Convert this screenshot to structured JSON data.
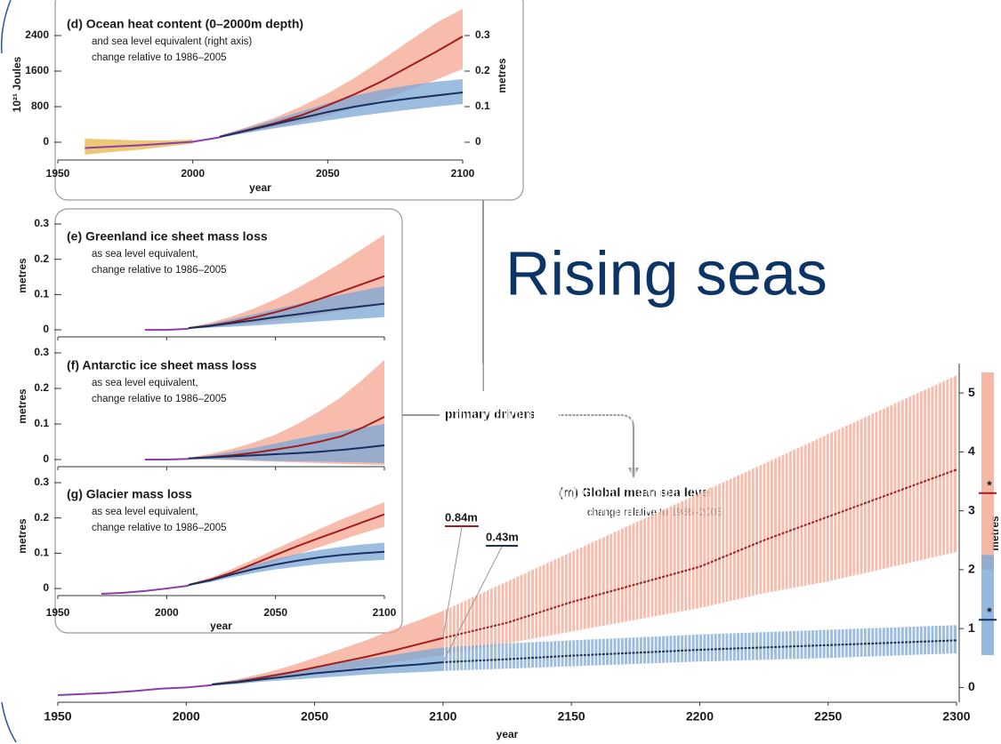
{
  "headline": "Rising seas",
  "connector_label": "primary drivers",
  "chart_data": [
    {
      "type": "line",
      "title": "(d) Ocean heat content (0–2000m depth)",
      "subtitle": [
        "and sea level equivalent (right axis)",
        "change relative to 1986–2005"
      ],
      "xlabel": "year",
      "ylabel": "10²¹ Joules",
      "y2label": "metres",
      "x": [
        1950,
        1960,
        1970,
        1980,
        1990,
        2000,
        2010,
        2020,
        2030,
        2040,
        2050,
        2060,
        2070,
        2080,
        2090,
        2100
      ],
      "xlim": [
        1950,
        2100
      ],
      "xticks": [
        1950,
        2000,
        2050,
        2100
      ],
      "show_xtick_labels": true,
      "ylim": [
        -400,
        3000
      ],
      "yticks": [
        0,
        800,
        1600,
        2400
      ],
      "y2lim": [
        -0.05,
        0.375
      ],
      "y2ticks": [
        0,
        0.1,
        0.2,
        0.3
      ],
      "series": [
        {
          "color": "#8b3ea8",
          "band_color": "#e6b447",
          "values": [
            null,
            -130,
            -100,
            -70,
            -30,
            10,
            110,
            null,
            null,
            null,
            null,
            null,
            null,
            null,
            null,
            null
          ],
          "lower": [
            null,
            -280,
            -220,
            -170,
            -100,
            -30,
            null,
            null,
            null,
            null,
            null,
            null,
            null,
            null,
            null,
            null
          ],
          "upper": [
            null,
            80,
            60,
            40,
            40,
            60,
            null,
            null,
            null,
            null,
            null,
            null,
            null,
            null,
            null,
            null
          ]
        },
        {
          "color": "#a31d1d",
          "band_color": "#f4a58f",
          "values": [
            null,
            null,
            null,
            null,
            null,
            null,
            120,
            270,
            420,
            600,
            830,
            1080,
            1370,
            1700,
            2030,
            2380
          ],
          "lower": [
            null,
            null,
            null,
            null,
            null,
            null,
            100,
            220,
            330,
            450,
            600,
            770,
            960,
            1170,
            1400,
            1650
          ],
          "upper": [
            null,
            null,
            null,
            null,
            null,
            null,
            150,
            340,
            540,
            800,
            1100,
            1450,
            1850,
            2270,
            2680,
            3000
          ]
        },
        {
          "color": "#1b2f5e",
          "band_color": "#7ba7d6",
          "values": [
            null,
            null,
            null,
            null,
            null,
            null,
            120,
            260,
            400,
            540,
            680,
            800,
            900,
            980,
            1050,
            1120
          ],
          "lower": [
            null,
            null,
            null,
            null,
            null,
            null,
            100,
            210,
            310,
            400,
            490,
            580,
            660,
            730,
            800,
            860
          ],
          "upper": [
            null,
            null,
            null,
            null,
            null,
            null,
            150,
            320,
            500,
            690,
            880,
            1050,
            1180,
            1280,
            1360,
            1420
          ]
        }
      ]
    },
    {
      "type": "line",
      "title": "(e) Greenland ice sheet mass loss",
      "subtitle": [
        "as sea level equivalent,",
        "change relative to 1986–2005"
      ],
      "ylabel": "metres",
      "x": [
        1950,
        1960,
        1970,
        1980,
        1990,
        2000,
        2010,
        2020,
        2030,
        2040,
        2050,
        2060,
        2070,
        2080,
        2090,
        2100
      ],
      "xlim": [
        1950,
        2100
      ],
      "xticks": [
        1950,
        2000,
        2050,
        2100
      ],
      "show_xtick_labels": false,
      "ylim": [
        -0.02,
        0.3
      ],
      "yticks": [
        0,
        0.1,
        0.2,
        0.3
      ],
      "series": [
        {
          "color": "#8b3ea8",
          "values": [
            null,
            null,
            null,
            null,
            0,
            0,
            0.003,
            null,
            null,
            null,
            null,
            null,
            null,
            null,
            null,
            null
          ]
        },
        {
          "color": "#a31d1d",
          "band_color": "#f4a58f",
          "values": [
            null,
            null,
            null,
            null,
            null,
            null,
            0.005,
            0.012,
            0.022,
            0.035,
            0.05,
            0.067,
            0.087,
            0.108,
            0.13,
            0.152
          ],
          "lower": [
            null,
            null,
            null,
            null,
            null,
            null,
            0.003,
            0.007,
            0.012,
            0.018,
            0.026,
            0.034,
            0.043,
            0.053,
            0.063,
            0.073
          ],
          "upper": [
            null,
            null,
            null,
            null,
            null,
            null,
            0.007,
            0.02,
            0.038,
            0.06,
            0.087,
            0.118,
            0.153,
            0.19,
            0.23,
            0.27
          ]
        },
        {
          "color": "#1b2f5e",
          "band_color": "#7ba7d6",
          "values": [
            null,
            null,
            null,
            null,
            null,
            null,
            0.005,
            0.011,
            0.019,
            0.027,
            0.036,
            0.044,
            0.052,
            0.06,
            0.067,
            0.074
          ],
          "lower": [
            null,
            null,
            null,
            null,
            null,
            null,
            0.003,
            0.006,
            0.009,
            0.012,
            0.016,
            0.02,
            0.024,
            0.028,
            0.032,
            0.036
          ],
          "upper": [
            null,
            null,
            null,
            null,
            null,
            null,
            0.007,
            0.017,
            0.03,
            0.044,
            0.059,
            0.073,
            0.087,
            0.1,
            0.112,
            0.124
          ]
        }
      ]
    },
    {
      "type": "line",
      "title": "(f) Antarctic ice sheet mass loss",
      "subtitle": [
        "as sea level equivalent,",
        "change relative to 1986–2005"
      ],
      "ylabel": "metres",
      "x": [
        1950,
        1960,
        1970,
        1980,
        1990,
        2000,
        2010,
        2020,
        2030,
        2040,
        2050,
        2060,
        2070,
        2080,
        2090,
        2100
      ],
      "xlim": [
        1950,
        2100
      ],
      "xticks": [
        1950,
        2000,
        2050,
        2100
      ],
      "show_xtick_labels": false,
      "ylim": [
        -0.02,
        0.3
      ],
      "yticks": [
        0,
        0.1,
        0.2,
        0.3
      ],
      "series": [
        {
          "color": "#8b3ea8",
          "values": [
            null,
            null,
            null,
            null,
            0,
            0,
            0.002,
            null,
            null,
            null,
            null,
            null,
            null,
            null,
            null,
            null
          ]
        },
        {
          "color": "#a31d1d",
          "band_color": "#f4a58f",
          "values": [
            null,
            null,
            null,
            null,
            null,
            null,
            0.003,
            0.007,
            0.012,
            0.019,
            0.028,
            0.038,
            0.05,
            0.065,
            0.09,
            0.12
          ],
          "lower": [
            null,
            null,
            null,
            null,
            null,
            null,
            0.001,
            0,
            -0.002,
            -0.004,
            -0.006,
            -0.008,
            -0.01,
            -0.012,
            -0.014,
            -0.015
          ],
          "upper": [
            null,
            null,
            null,
            null,
            null,
            null,
            0.005,
            0.016,
            0.03,
            0.048,
            0.07,
            0.1,
            0.135,
            0.175,
            0.225,
            0.28
          ]
        },
        {
          "color": "#1b2f5e",
          "band_color": "#7ba7d6",
          "values": [
            null,
            null,
            null,
            null,
            null,
            null,
            0.003,
            0.006,
            0.009,
            0.012,
            0.015,
            0.018,
            0.022,
            0.027,
            0.033,
            0.04
          ],
          "lower": [
            null,
            null,
            null,
            null,
            null,
            null,
            0.001,
            0.001,
            0,
            -0.002,
            -0.004,
            -0.005,
            -0.006,
            -0.007,
            -0.008,
            -0.01
          ],
          "upper": [
            null,
            null,
            null,
            null,
            null,
            null,
            0.005,
            0.012,
            0.022,
            0.033,
            0.045,
            0.058,
            0.07,
            0.08,
            0.09,
            0.1
          ]
        }
      ]
    },
    {
      "type": "line",
      "title": "(g) Glacier mass loss",
      "subtitle": [
        "as sea level equivalent,",
        "change relative to 1986–2005"
      ],
      "xlabel": "year",
      "ylabel": "metres",
      "x": [
        1950,
        1960,
        1970,
        1980,
        1990,
        2000,
        2010,
        2020,
        2030,
        2040,
        2050,
        2060,
        2070,
        2080,
        2090,
        2100
      ],
      "xlim": [
        1950,
        2100
      ],
      "xticks": [
        1950,
        2000,
        2050,
        2100
      ],
      "show_xtick_labels": true,
      "ylim": [
        -0.02,
        0.3
      ],
      "yticks": [
        0,
        0.1,
        0.2,
        0.3
      ],
      "series": [
        {
          "color": "#8b3ea8",
          "values": [
            null,
            null,
            -0.015,
            -0.012,
            -0.007,
            0,
            0.008,
            null,
            null,
            null,
            null,
            null,
            null,
            null,
            null,
            null
          ]
        },
        {
          "color": "#a31d1d",
          "band_color": "#f4a58f",
          "values": [
            null,
            null,
            null,
            null,
            null,
            null,
            0.01,
            0.025,
            0.045,
            0.07,
            0.095,
            0.12,
            0.143,
            0.165,
            0.188,
            0.21
          ],
          "lower": [
            null,
            null,
            null,
            null,
            null,
            null,
            0.008,
            0.02,
            0.037,
            0.056,
            0.076,
            0.097,
            0.117,
            0.137,
            0.157,
            0.175
          ],
          "upper": [
            null,
            null,
            null,
            null,
            null,
            null,
            0.012,
            0.03,
            0.055,
            0.083,
            0.112,
            0.14,
            0.168,
            0.195,
            0.22,
            0.245
          ]
        },
        {
          "color": "#1b2f5e",
          "band_color": "#7ba7d6",
          "values": [
            null,
            null,
            null,
            null,
            null,
            null,
            0.01,
            0.023,
            0.04,
            0.055,
            0.068,
            0.079,
            0.088,
            0.095,
            0.1,
            0.104
          ],
          "lower": [
            null,
            null,
            null,
            null,
            null,
            null,
            0.008,
            0.018,
            0.032,
            0.044,
            0.054,
            0.062,
            0.069,
            0.074,
            0.078,
            0.081
          ],
          "upper": [
            null,
            null,
            null,
            null,
            null,
            null,
            0.012,
            0.028,
            0.048,
            0.067,
            0.084,
            0.098,
            0.109,
            0.118,
            0.125,
            0.13
          ]
        }
      ]
    },
    {
      "type": "line",
      "title": "(m) Global mean sea level",
      "subtitle": [
        "change relative to 1986–2005"
      ],
      "xlabel": "year",
      "ylabel": "metres",
      "y_axis_side": "right",
      "hatch_from": 2100,
      "x": [
        1950,
        1960,
        1970,
        1980,
        1990,
        2000,
        2010,
        2020,
        2030,
        2040,
        2050,
        2060,
        2070,
        2080,
        2090,
        2100,
        2125,
        2150,
        2175,
        2200,
        2225,
        2250,
        2275,
        2300
      ],
      "xlim": [
        1950,
        2300
      ],
      "xticks": [
        1950,
        2000,
        2050,
        2100,
        2150,
        2200,
        2250,
        2300
      ],
      "show_xtick_labels": true,
      "ylim": [
        -0.25,
        5.5
      ],
      "yticks": [
        0,
        1,
        2,
        3,
        4,
        5
      ],
      "series": [
        {
          "color": "#8b3ea8",
          "values": [
            -0.13,
            -0.11,
            -0.09,
            -0.06,
            -0.02,
            0,
            0.04,
            null,
            null,
            null,
            null,
            null,
            null,
            null,
            null,
            null,
            null,
            null,
            null,
            null,
            null,
            null,
            null,
            null
          ]
        },
        {
          "color": "#a31d1d",
          "band_color": "#f4a58f",
          "values": [
            null,
            null,
            null,
            null,
            null,
            null,
            0.05,
            0.1,
            0.17,
            0.25,
            0.34,
            0.43,
            0.52,
            0.62,
            0.73,
            0.84,
            1.1,
            1.45,
            1.75,
            2.05,
            2.5,
            2.9,
            3.3,
            3.7
          ],
          "value_labels": [
            null,
            null,
            null,
            null,
            null,
            null,
            null,
            null,
            null,
            null,
            null,
            null,
            null,
            null,
            null,
            "0.84m",
            null,
            null,
            null,
            null,
            null,
            null,
            null,
            null
          ],
          "lower": [
            null,
            null,
            null,
            null,
            null,
            null,
            0.04,
            0.08,
            0.13,
            0.18,
            0.24,
            0.3,
            0.36,
            0.42,
            0.49,
            0.55,
            0.75,
            0.95,
            1.15,
            1.35,
            1.6,
            1.8,
            2.05,
            2.3
          ],
          "upper": [
            null,
            null,
            null,
            null,
            null,
            null,
            0.07,
            0.14,
            0.24,
            0.36,
            0.5,
            0.65,
            0.8,
            0.97,
            1.13,
            1.3,
            1.8,
            2.3,
            2.8,
            3.3,
            3.8,
            4.3,
            4.8,
            5.3
          ]
        },
        {
          "color": "#1b2f5e",
          "band_color": "#7ba7d6",
          "values": [
            null,
            null,
            null,
            null,
            null,
            null,
            0.05,
            0.09,
            0.14,
            0.19,
            0.24,
            0.28,
            0.32,
            0.36,
            0.39,
            0.43,
            0.48,
            0.54,
            0.59,
            0.64,
            0.68,
            0.72,
            0.76,
            0.8
          ],
          "value_labels": [
            null,
            null,
            null,
            null,
            null,
            null,
            null,
            null,
            null,
            null,
            null,
            null,
            null,
            null,
            null,
            "0.43m",
            null,
            null,
            null,
            null,
            null,
            null,
            null,
            null
          ],
          "lower": [
            null,
            null,
            null,
            null,
            null,
            null,
            0.03,
            0.06,
            0.1,
            0.13,
            0.16,
            0.19,
            0.22,
            0.24,
            0.26,
            0.28,
            0.32,
            0.36,
            0.4,
            0.44,
            0.47,
            0.5,
            0.54,
            0.58
          ],
          "upper": [
            null,
            null,
            null,
            null,
            null,
            null,
            0.07,
            0.13,
            0.2,
            0.27,
            0.35,
            0.42,
            0.49,
            0.55,
            0.62,
            0.68,
            0.75,
            0.8,
            0.85,
            0.9,
            0.94,
            0.98,
            1.02,
            1.06
          ]
        }
      ],
      "range_bars": [
        {
          "color": "#f4a58f",
          "line_color": "#a31d1d",
          "low": 2.0,
          "high": 5.35,
          "median": 3.3,
          "marker": "*"
        },
        {
          "color": "#7ba7d6",
          "line_color": "#1b2f5e",
          "low": 0.55,
          "high": 2.25,
          "median": 1.15,
          "marker": "*"
        }
      ]
    }
  ]
}
